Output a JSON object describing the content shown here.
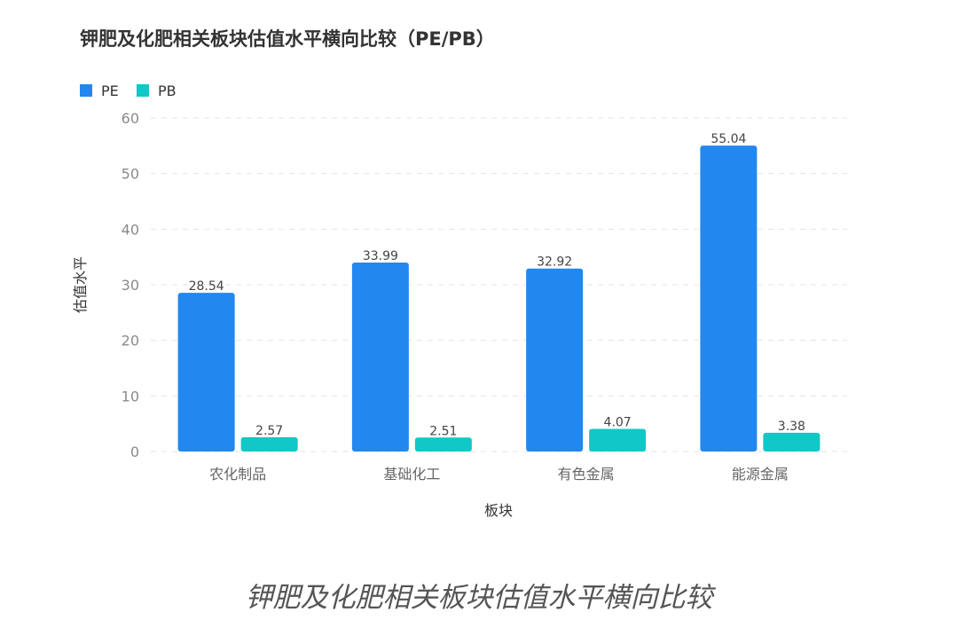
{
  "chart_data": {
    "type": "bar",
    "title": "钾肥及化肥相关板块估值水平横向比较（PE/PB）",
    "xlabel": "板块",
    "ylabel": "估值水平",
    "categories": [
      "农化制品",
      "基础化工",
      "有色金属",
      "能源金属"
    ],
    "series": [
      {
        "name": "PE",
        "color": "#2288f0",
        "values": [
          28.54,
          33.99,
          32.92,
          55.04
        ]
      },
      {
        "name": "PB",
        "color": "#12c7c7",
        "values": [
          2.57,
          2.51,
          4.07,
          3.38
        ]
      }
    ],
    "ylim": [
      0,
      60
    ],
    "yticks": [
      0,
      10,
      20,
      30,
      40,
      50,
      60
    ],
    "grid": true,
    "legend": "top-left"
  },
  "caption": "钾肥及化肥相关板块估值水平横向比较"
}
